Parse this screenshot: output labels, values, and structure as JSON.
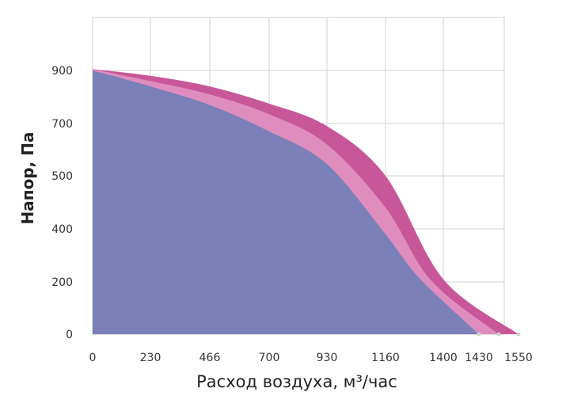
{
  "chart_data": {
    "type": "area",
    "xlabel": "Расход воздуха, м³/час",
    "ylabel": "Напор, Па",
    "x_ticks": [
      0,
      230,
      466,
      700,
      930,
      1160,
      1400,
      1430,
      1550
    ],
    "y_ticks": [
      0,
      200,
      400,
      500,
      700,
      900
    ],
    "xlim": [
      0,
      1640
    ],
    "ylim": [
      0,
      1000
    ],
    "grid": true,
    "colors": {
      "outer": "#c8579a",
      "middle": "#de8dbe",
      "inner": "#7b80b8",
      "grid": "#d9d9d9"
    },
    "series": [
      {
        "x": [
          0,
          230,
          466,
          700,
          930,
          1160,
          1400,
          1550
        ],
        "y": [
          905,
          880,
          840,
          775,
          690,
          500,
          210,
          0
        ]
      },
      {
        "x": [
          0,
          230,
          466,
          700,
          930,
          1160,
          1350,
          1490
        ],
        "y": [
          905,
          860,
          810,
          735,
          620,
          440,
          205,
          0
        ]
      },
      {
        "x": [
          0,
          230,
          466,
          700,
          930,
          1160,
          1300,
          1430
        ],
        "y": [
          900,
          840,
          770,
          670,
          545,
          380,
          215,
          0
        ]
      }
    ]
  }
}
